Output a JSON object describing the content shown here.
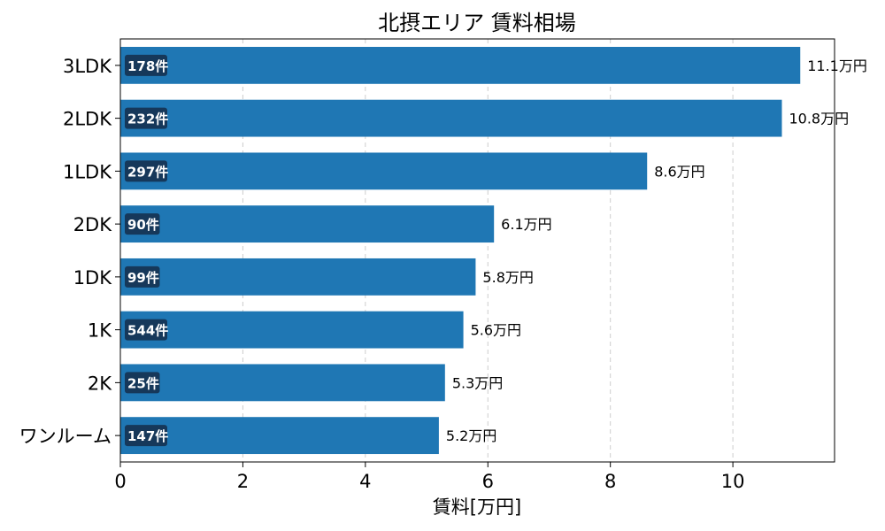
{
  "chart_data": {
    "type": "bar",
    "orientation": "horizontal",
    "title": "北摂エリア 賃料相場",
    "xlabel": "賃料[万円]",
    "ylabel": "",
    "xlim": [
      0,
      11.66
    ],
    "xticks": [
      0,
      2,
      4,
      6,
      8,
      10
    ],
    "grid": {
      "x": true,
      "y": false,
      "style": "dashed"
    },
    "bar_color": "#1f77b4",
    "count_badge_color": "#16385a",
    "categories": [
      "3LDK",
      "2LDK",
      "1LDK",
      "2DK",
      "1DK",
      "1K",
      "2K",
      "ワンルーム"
    ],
    "values": [
      11.1,
      10.8,
      8.6,
      6.1,
      5.8,
      5.6,
      5.3,
      5.2
    ],
    "value_labels": [
      "11.1万円",
      "10.8万円",
      "8.6万円",
      "6.1万円",
      "5.8万円",
      "5.6万円",
      "5.3万円",
      "5.2万円"
    ],
    "counts": [
      "178件",
      "232件",
      "297件",
      "90件",
      "99件",
      "544件",
      "25件",
      "147件"
    ]
  }
}
